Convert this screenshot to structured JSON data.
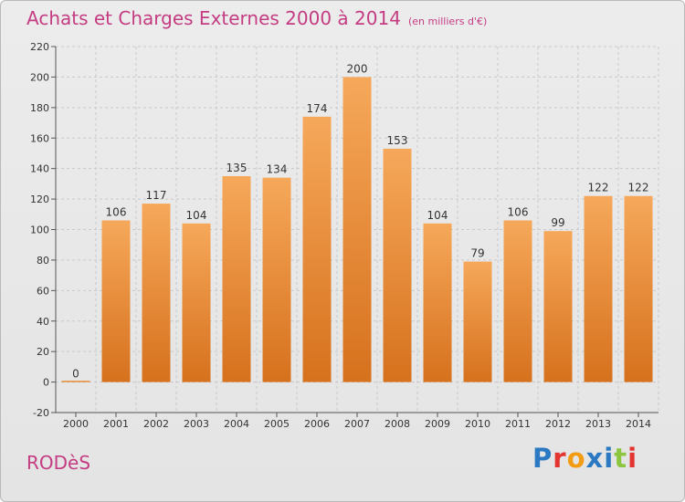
{
  "title": "Achats et Charges Externes 2000 à 2014",
  "unit": "(en milliers d'€)",
  "city": "RODèS",
  "brand": "Proxiti",
  "colors": {
    "title": "#c43c82",
    "bar_top": "#f6a85a",
    "bar_bottom": "#d6711d",
    "grid": "#c9c9c9",
    "axis_text": "#333333"
  },
  "chart_data": {
    "type": "bar",
    "categories": [
      "2000",
      "2001",
      "2002",
      "2003",
      "2004",
      "2005",
      "2006",
      "2007",
      "2008",
      "2009",
      "2010",
      "2011",
      "2012",
      "2013",
      "2014"
    ],
    "values": [
      0,
      106,
      117,
      104,
      135,
      134,
      174,
      200,
      153,
      104,
      79,
      106,
      99,
      122,
      122
    ],
    "ylim": [
      -20,
      220
    ],
    "yticks": [
      -20,
      0,
      20,
      40,
      60,
      80,
      100,
      120,
      140,
      160,
      180,
      200,
      220
    ],
    "grid": "horizontal dashed",
    "legend": "none",
    "title": "Achats et Charges Externes 2000 à 2014",
    "xlabel": "",
    "ylabel": ""
  }
}
